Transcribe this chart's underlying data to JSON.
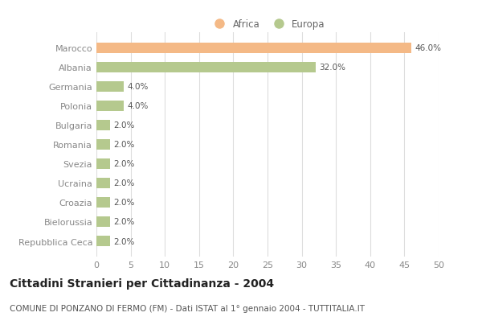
{
  "categories": [
    "Marocco",
    "Albania",
    "Germania",
    "Polonia",
    "Bulgaria",
    "Romania",
    "Svezia",
    "Ucraina",
    "Croazia",
    "Bielorussia",
    "Repubblica Ceca"
  ],
  "values": [
    46.0,
    32.0,
    4.0,
    4.0,
    2.0,
    2.0,
    2.0,
    2.0,
    2.0,
    2.0,
    2.0
  ],
  "colors": [
    "#f4b986",
    "#b5c98e",
    "#b5c98e",
    "#b5c98e",
    "#b5c98e",
    "#b5c98e",
    "#b5c98e",
    "#b5c98e",
    "#b5c98e",
    "#b5c98e",
    "#b5c98e"
  ],
  "legend_africa_color": "#f4b986",
  "legend_europa_color": "#b5c98e",
  "xlim": [
    0,
    50
  ],
  "xticks": [
    0,
    5,
    10,
    15,
    20,
    25,
    30,
    35,
    40,
    45,
    50
  ],
  "title": "Cittadini Stranieri per Cittadinanza - 2004",
  "subtitle": "COMUNE DI PONZANO DI FERMO (FM) - Dati ISTAT al 1° gennaio 2004 - TUTTITALIA.IT",
  "background_color": "#ffffff",
  "grid_color": "#dddddd",
  "bar_height": 0.55,
  "title_fontsize": 10,
  "subtitle_fontsize": 7.5,
  "tick_label_fontsize": 8,
  "value_fontsize": 7.5,
  "legend_fontsize": 8.5
}
